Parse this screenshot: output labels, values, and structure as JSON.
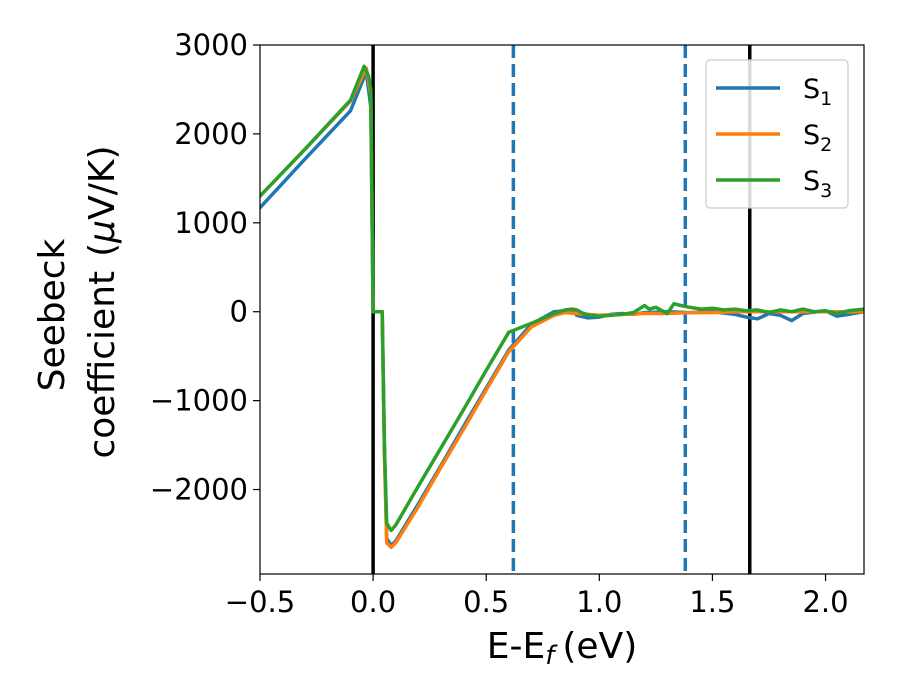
{
  "chart_data": {
    "type": "line",
    "xlabel": "E-E",
    "xlabel_sub": "f",
    "xlabel_unit": "(eV)",
    "ylabel_line1": "Seebeck",
    "ylabel_line2": "coefficient",
    "ylabel_unit_mu": "μ",
    "ylabel_unit_rest": "V/K)",
    "ylabel_unit_open": "(",
    "xlim": [
      -0.5,
      2.17
    ],
    "ylim": [
      -2950,
      3000
    ],
    "x_ticks": [
      -0.5,
      0.0,
      0.5,
      1.0,
      1.5,
      2.0
    ],
    "x_tick_labels": [
      "−0.5",
      "0.0",
      "0.5",
      "1.0",
      "1.5",
      "2.0"
    ],
    "y_ticks": [
      3000,
      2000,
      1000,
      0,
      -1000,
      -2000
    ],
    "y_tick_labels": [
      "3000",
      "2000",
      "1000",
      "0",
      "−1000",
      "−2000"
    ],
    "grid": false,
    "legend_position": "top-right",
    "series": [
      {
        "name": "S",
        "sub": "1",
        "color": "#1f77b4",
        "x": [
          -0.5,
          -0.3,
          -0.1,
          -0.03,
          -0.01,
          0.0,
          0.04,
          0.05,
          0.06,
          0.08,
          0.1,
          0.2,
          0.3,
          0.4,
          0.5,
          0.6,
          0.7,
          0.8,
          0.85,
          0.88,
          0.9,
          0.95,
          1.0,
          1.05,
          1.1,
          1.15,
          1.2,
          1.3,
          1.4,
          1.5,
          1.6,
          1.65,
          1.7,
          1.75,
          1.8,
          1.85,
          1.9,
          2.0,
          2.05,
          2.1,
          2.17
        ],
        "y": [
          1170,
          1720,
          2260,
          2700,
          2300,
          0,
          0,
          -1500,
          -2550,
          -2630,
          -2580,
          -2160,
          -1730,
          -1290,
          -860,
          -430,
          -140,
          0,
          10,
          20,
          -40,
          -70,
          -60,
          -30,
          -20,
          -30,
          -10,
          0,
          -10,
          0,
          -30,
          -60,
          -80,
          -20,
          -40,
          -100,
          -20,
          10,
          -50,
          -30,
          0
        ]
      },
      {
        "name": "S",
        "sub": "2",
        "color": "#ff7f0e",
        "x": [
          -0.5,
          -0.3,
          -0.1,
          -0.03,
          -0.01,
          0.0,
          0.04,
          0.05,
          0.06,
          0.08,
          0.1,
          0.2,
          0.3,
          0.4,
          0.5,
          0.6,
          0.7,
          0.8,
          0.85,
          0.9,
          0.95,
          1.0,
          1.1,
          1.2,
          1.3,
          1.4,
          1.5,
          1.6,
          1.7,
          1.8,
          1.9,
          2.0,
          2.1,
          2.17
        ],
        "y": [
          1300,
          1830,
          2370,
          2740,
          2450,
          0,
          0,
          -1600,
          -2600,
          -2650,
          -2600,
          -2190,
          -1750,
          -1320,
          -880,
          -450,
          -170,
          -40,
          -10,
          -20,
          -30,
          -40,
          -30,
          -20,
          -20,
          -10,
          -10,
          0,
          0,
          0,
          0,
          0,
          0,
          0
        ]
      },
      {
        "name": "S",
        "sub": "3",
        "color": "#2ca02c",
        "x": [
          -0.5,
          -0.3,
          -0.1,
          -0.04,
          -0.02,
          -0.01,
          0.0,
          0.04,
          0.05,
          0.06,
          0.08,
          0.1,
          0.2,
          0.3,
          0.4,
          0.5,
          0.6,
          0.7,
          0.8,
          0.85,
          0.88,
          0.9,
          0.93,
          0.96,
          1.0,
          1.1,
          1.15,
          1.2,
          1.22,
          1.25,
          1.3,
          1.33,
          1.36,
          1.4,
          1.45,
          1.5,
          1.55,
          1.6,
          1.65,
          1.7,
          1.75,
          1.8,
          1.85,
          1.9,
          1.95,
          2.0,
          2.05,
          2.1,
          2.17
        ],
        "y": [
          1300,
          1830,
          2380,
          2760,
          2650,
          2500,
          0,
          0,
          -1500,
          -2380,
          -2460,
          -2400,
          -1960,
          -1530,
          -1100,
          -660,
          -230,
          -130,
          -20,
          20,
          30,
          20,
          -20,
          -40,
          -50,
          -30,
          -10,
          70,
          30,
          50,
          -20,
          90,
          70,
          50,
          30,
          40,
          20,
          30,
          10,
          20,
          -10,
          20,
          0,
          30,
          0,
          10,
          -20,
          10,
          30
        ]
      }
    ],
    "vertical_lines": [
      {
        "x": 0.0,
        "style": "solid",
        "color": "#000000"
      },
      {
        "x": 1.665,
        "style": "solid",
        "color": "#000000"
      },
      {
        "x": 0.62,
        "style": "dashed",
        "color": "#1f77b4"
      },
      {
        "x": 1.38,
        "style": "dashed",
        "color": "#1f77b4"
      }
    ]
  }
}
